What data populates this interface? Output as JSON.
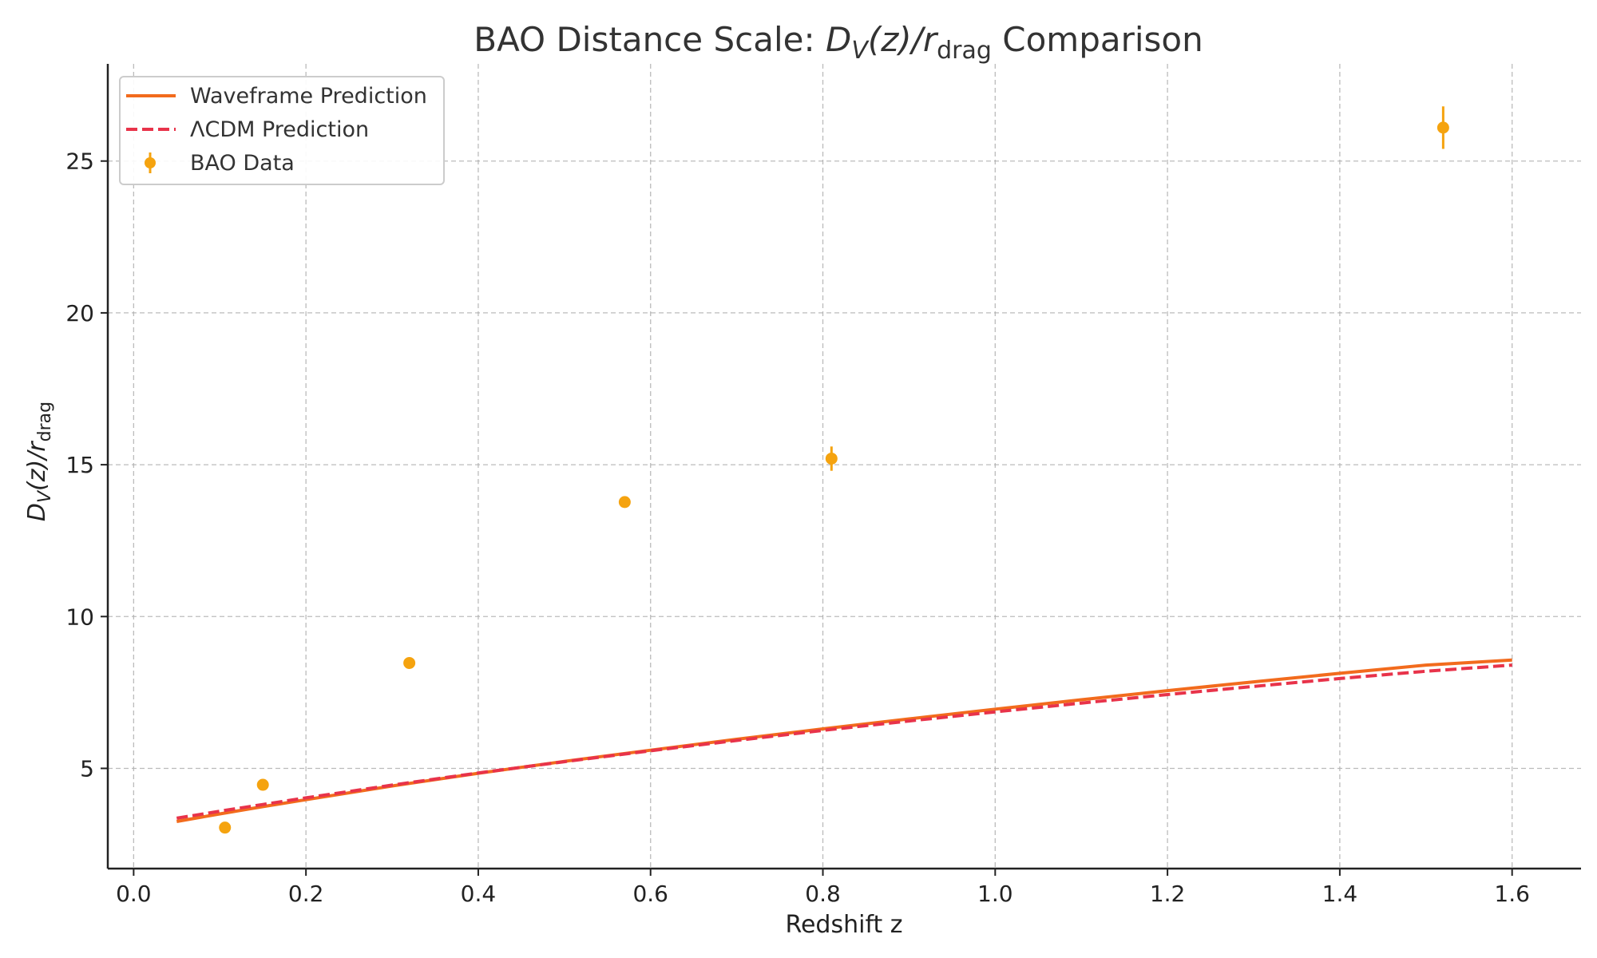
{
  "chart_data": {
    "type": "line",
    "title": {
      "prefix": "BAO Distance Scale: ",
      "math_D": "D",
      "math_V": "V",
      "math_z": "(z)/",
      "math_r": "r",
      "math_drag": "drag",
      "suffix": " Comparison"
    },
    "xlabel": "Redshift z",
    "ylabel": {
      "math_D": "D",
      "math_V": "V",
      "math_z": "(z)/",
      "math_r": "r",
      "math_drag": "drag"
    },
    "xlim": [
      -0.03,
      1.68
    ],
    "ylim": [
      1.7,
      28.2
    ],
    "xticks": [
      0.0,
      0.2,
      0.4,
      0.6,
      0.8,
      1.0,
      1.2,
      1.4,
      1.6
    ],
    "xtick_labels": [
      "0.0",
      "0.2",
      "0.4",
      "0.6",
      "0.8",
      "1.0",
      "1.2",
      "1.4",
      "1.6"
    ],
    "yticks": [
      5,
      10,
      15,
      20,
      25
    ],
    "ytick_labels": [
      "5",
      "10",
      "15",
      "20",
      "25"
    ],
    "grid": true,
    "legend_position": "top-left",
    "series": [
      {
        "name": "Waveframe Prediction",
        "kind": "line",
        "style": "solid",
        "color": "#F26B1D",
        "x": [
          0.05,
          0.1,
          0.15,
          0.2,
          0.3,
          0.4,
          0.5,
          0.6,
          0.7,
          0.8,
          0.9,
          1.0,
          1.1,
          1.2,
          1.3,
          1.4,
          1.5,
          1.6
        ],
        "y": [
          3.25,
          3.5,
          3.74,
          3.97,
          4.42,
          4.84,
          5.23,
          5.6,
          5.96,
          6.3,
          6.63,
          6.95,
          7.26,
          7.56,
          7.85,
          8.13,
          8.4,
          8.57
        ]
      },
      {
        "name": "ΛCDM Prediction",
        "kind": "line",
        "style": "dashed",
        "color": "#E8334A",
        "x": [
          0.05,
          0.1,
          0.15,
          0.2,
          0.3,
          0.4,
          0.5,
          0.6,
          0.7,
          0.8,
          0.9,
          1.0,
          1.1,
          1.2,
          1.3,
          1.4,
          1.5,
          1.6
        ],
        "y": [
          3.36,
          3.59,
          3.81,
          4.03,
          4.45,
          4.85,
          5.22,
          5.58,
          5.92,
          6.25,
          6.56,
          6.86,
          7.15,
          7.43,
          7.7,
          7.96,
          8.2,
          8.4
        ]
      },
      {
        "name": "BAO Data",
        "kind": "errorbar",
        "color": "#F5A30F",
        "x": [
          0.106,
          0.15,
          0.32,
          0.57,
          0.81,
          1.52
        ],
        "y": [
          3.05,
          4.46,
          8.47,
          13.77,
          15.2,
          26.1
        ],
        "yerr": [
          0.1,
          0.17,
          0.16,
          0.12,
          0.4,
          0.7
        ]
      }
    ]
  }
}
